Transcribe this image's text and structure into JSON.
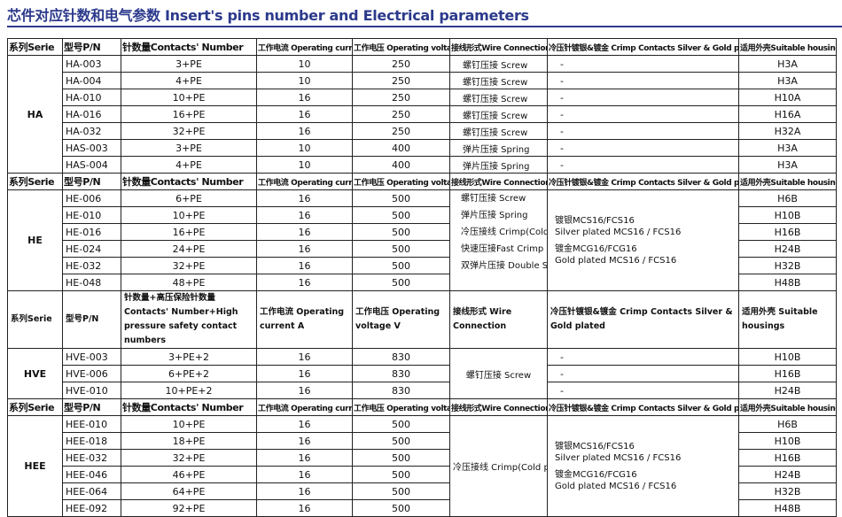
{
  "title": "芯件对应针数和电气参数 Insert's pins number and Electrical parameters",
  "header": [
    "系列Serie",
    "型号P/N",
    "针数量Contacts' Number",
    "工作电流 Operating current A",
    "工作电压 Operating voltage V",
    "接线形式Wire Connection",
    "冷压针镀银&镀金 Crimp Contacts Silver & Gold plated",
    "适用外壳Suitable housings"
  ],
  "header_hve": [
    "系列Serie",
    "型号P/N",
    "针数量+高压保险针数量 Contacts' Number+High pressure safety contact numbers",
    "工作电流 Operating current A",
    "工作电压 Operating voltage V",
    "接线形式 Wire Connection",
    "冷压针镀银&镀金 Crimp Contacts Silver & Gold plated",
    "适用外壳 Suitable housings"
  ],
  "groups": [
    {
      "serie": "HA",
      "rows": [
        [
          "HA-003",
          "3+PE",
          "10",
          "250",
          "螺钉压接 Screw",
          "-",
          "H3A"
        ],
        [
          "HA-004",
          "4+PE",
          "10",
          "250",
          "螺钉压接 Screw",
          "-",
          "H3A"
        ],
        [
          "HA-010",
          "10+PE",
          "16",
          "250",
          "螺钉压接 Screw",
          "-",
          "H10A"
        ],
        [
          "HA-016",
          "16+PE",
          "16",
          "250",
          "螺钉压接 Screw",
          "-",
          "H16A"
        ],
        [
          "HA-032",
          "32+PE",
          "16",
          "250",
          "螺钉压接 Screw",
          "-",
          "H32A"
        ],
        [
          "HAS-003",
          "3+PE",
          "10",
          "400",
          "弹片压接 Spring",
          "-",
          "H3A"
        ],
        [
          "HAS-004",
          "4+PE",
          "10",
          "400",
          "弹片压接 Spring",
          "-",
          "H3A"
        ]
      ]
    },
    {
      "serie": "HE",
      "wire_list": [
        "螺钉压接 Screw",
        "弹片压接 Spring",
        "冷压接线 Crimp(Cold pressing)",
        "快速压接Fast Crimp",
        "双弹片压接 Double Spring"
      ],
      "crimp": [
        "镀银MCS16/FCS16",
        "Silver plated MCS16 / FCS16",
        "镀金MCG16/FCG16",
        "Gold plated MCS16 / FCS16"
      ],
      "rows": [
        [
          "HE-006",
          "6+PE",
          "16",
          "500",
          "",
          "",
          "H6B"
        ],
        [
          "HE-010",
          "10+PE",
          "16",
          "500",
          "",
          "",
          "H10B"
        ],
        [
          "HE-016",
          "16+PE",
          "16",
          "500",
          "",
          "",
          "H16B"
        ],
        [
          "HE-024",
          "24+PE",
          "16",
          "500",
          "",
          "",
          "H24B"
        ],
        [
          "HE-032",
          "32+PE",
          "16",
          "500",
          "",
          "",
          "H32B"
        ],
        [
          "HE-048",
          "48+PE",
          "16",
          "500",
          "",
          "",
          "H48B"
        ]
      ]
    },
    {
      "serie": "HVE",
      "wire": "螺钉压接 Screw",
      "rows": [
        [
          "HVE-003",
          "3+PE+2",
          "16",
          "830",
          "",
          "-",
          "H10B"
        ],
        [
          "HVE-006",
          "6+PE+2",
          "16",
          "830",
          "",
          "-",
          "H16B"
        ],
        [
          "HVE-010",
          "10+PE+2",
          "16",
          "830",
          "",
          "-",
          "H24B"
        ]
      ]
    },
    {
      "serie": "HEE",
      "wire": "冷压接线 Crimp(Cold pressing)",
      "crimp": [
        "镀银MCS16/FCS16",
        "Silver plated MCS16 / FCS16",
        "镀金MCG16/FCG16",
        "Gold plated MCS16 / FCS16"
      ],
      "rows": [
        [
          "HEE-010",
          "10+PE",
          "16",
          "500",
          "",
          "",
          "H6B"
        ],
        [
          "HEE-018",
          "18+PE",
          "16",
          "500",
          "",
          "",
          "H10B"
        ],
        [
          "HEE-032",
          "32+PE",
          "16",
          "500",
          "",
          "",
          "H16B"
        ],
        [
          "HEE-046",
          "46+PE",
          "16",
          "500",
          "",
          "",
          "H24B"
        ],
        [
          "HEE-064",
          "64+PE",
          "16",
          "500",
          "",
          "",
          "H32B"
        ],
        [
          "HEE-092",
          "92+PE",
          "16",
          "500",
          "",
          "",
          "H48B"
        ]
      ]
    }
  ]
}
